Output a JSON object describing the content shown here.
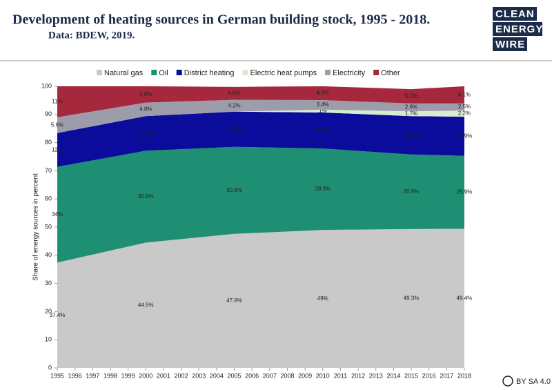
{
  "title": "Development of heating sources in German building stock, 1995 - 2018.",
  "subtitle": "Data: BDEW, 2019.",
  "logo": [
    "CLEAN",
    "ENERGY",
    "WIRE"
  ],
  "license": "BY SA 4.0",
  "chart_data": {
    "type": "stacked-area",
    "y_label": "Share of energy sources in percent",
    "x": [
      1995,
      2000,
      2005,
      2010,
      2015,
      2018
    ],
    "xlim": [
      1995,
      2018
    ],
    "xticks": [
      1995,
      1996,
      1997,
      1998,
      1999,
      2000,
      2001,
      2002,
      2003,
      2004,
      2005,
      2006,
      2007,
      2008,
      2009,
      2010,
      2011,
      2012,
      2013,
      2014,
      2015,
      2016,
      2017,
      2018
    ],
    "ylim": [
      0,
      100
    ],
    "yticks": [
      0,
      10,
      20,
      30,
      40,
      50,
      60,
      70,
      80,
      90,
      100
    ],
    "grid": false,
    "legend": "top",
    "series": [
      {
        "name": "Natural gas",
        "color": "#c9c9c9",
        "values": [
          37.4,
          44.5,
          47.6,
          49,
          49.3,
          49.4
        ],
        "value_labels": [
          "37.4%",
          "44.5%",
          "47.6%",
          "49%",
          "49.3%",
          "49.4%"
        ]
      },
      {
        "name": "Oil",
        "color": "#1f8f74",
        "values": [
          34,
          32.6,
          30.9,
          28.9,
          26.5,
          25.9
        ],
        "value_labels": [
          "34%",
          "32.6%",
          "30.9%",
          "28.9%",
          "26.5%",
          "25.9%"
        ]
      },
      {
        "name": "District heating",
        "color": "#0b0b9c",
        "values": [
          12,
          12.3,
          12.5,
          12.8,
          13.6,
          13.9
        ],
        "value_labels": [
          "12%",
          "12.3%",
          "12.5%",
          "12.8%",
          "13.6%",
          "13.9%"
        ]
      },
      {
        "name": "Electric heat pumps",
        "color": "#d6ebcf",
        "values": [
          0,
          0,
          0,
          1,
          1.7,
          2.2
        ],
        "value_labels": [
          null,
          null,
          null,
          "1%",
          "1.7%",
          "2.2%"
        ]
      },
      {
        "name": "Electricity",
        "color": "#9c9cab",
        "values": [
          5.6,
          4.8,
          4.2,
          3.4,
          2.8,
          2.5
        ],
        "value_labels": [
          "5.6%",
          "4.8%",
          "4.2%",
          "3.4%",
          "2.8%",
          "2.5%"
        ]
      },
      {
        "name": "Other",
        "color": "#a6283c",
        "values": [
          11,
          5.8,
          4.6,
          4.9,
          5.1,
          6.1
        ],
        "value_labels": [
          "11%",
          "5.8%",
          "4.6%",
          "4.9%",
          "5.1%",
          "6.1%"
        ]
      }
    ]
  }
}
